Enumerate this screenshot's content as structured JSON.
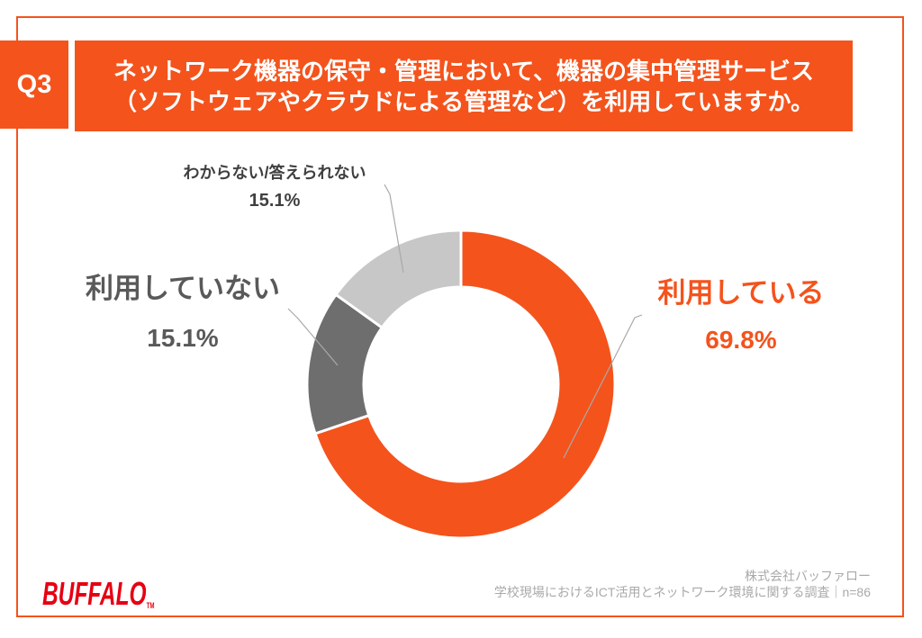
{
  "header": {
    "question_number": "Q3",
    "title_line1": "ネットワーク機器の保守・管理において、機器の集中管理サービス",
    "title_line2": "（ソフトウェアやクラウドによる管理など）を利用していますか。"
  },
  "chart_data": {
    "type": "pie",
    "subtype": "donut",
    "unit": "percent",
    "categories": [
      "利用している",
      "利用していない",
      "わからない/答えられない"
    ],
    "values": [
      69.8,
      15.1,
      15.1
    ],
    "slices": [
      {
        "label": "利用している",
        "value": 69.8,
        "pct_text": "69.8%",
        "color": "#F4531C"
      },
      {
        "label": "利用していない",
        "value": 15.1,
        "pct_text": "15.1%",
        "color": "#6E6E6E"
      },
      {
        "label": "わからない/答えられない",
        "value": 15.1,
        "pct_text": "15.1%",
        "color": "#C7C7C7"
      }
    ],
    "start_angle_deg": 0,
    "direction": "clockwise",
    "hole_ratio": 0.63,
    "legend": "none",
    "data_labels": "outside-with-leader-lines"
  },
  "footer": {
    "logo_text": "BUFFALO",
    "logo_tm": "TM",
    "credit_line1": "株式会社バッファロー",
    "credit_line2": "学校現場におけるICT活用とネットワーク環境に関する調査｜n=86"
  },
  "colors": {
    "accent_orange": "#F4531C",
    "slice_dark_gray": "#6E6E6E",
    "slice_light_gray": "#C7C7C7",
    "logo_red": "#E60012",
    "credit_gray": "#A9A9A9",
    "leader_line_gray": "#A9A9A9",
    "background": "#FFFFFF"
  }
}
